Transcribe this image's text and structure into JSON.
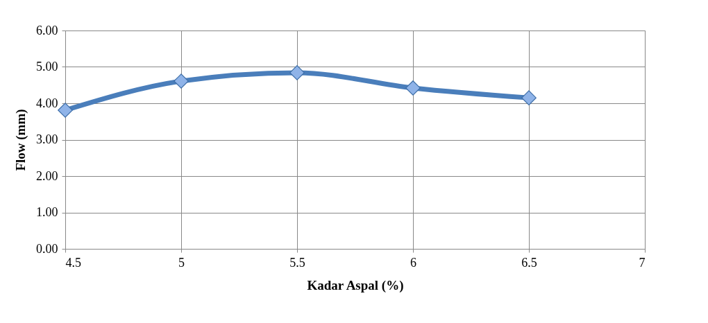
{
  "chart_data": {
    "type": "line",
    "xlabel": "Kadar Aspal (%)",
    "ylabel": "Flow (mm)",
    "x": [
      4.5,
      5,
      5.5,
      6,
      6.5
    ],
    "series": [
      {
        "color": "#4a7ebb",
        "values": [
          3.81,
          4.61,
          4.84,
          4.42,
          4.15
        ]
      }
    ],
    "xlim": [
      4.5,
      7
    ],
    "xticks": [
      4.5,
      5,
      5.5,
      6,
      6.5,
      7
    ],
    "ylim": [
      0,
      6
    ],
    "yticks": [
      {
        "value": 0,
        "label": "0.00"
      },
      {
        "value": 1,
        "label": "1.00"
      },
      {
        "value": 2,
        "label": "2.00"
      },
      {
        "value": 3,
        "label": "3.00"
      },
      {
        "value": 4,
        "label": "4.00"
      },
      {
        "value": 5,
        "label": "5.00"
      },
      {
        "value": 6,
        "label": "6.00"
      }
    ],
    "grid": true,
    "marker": "diamond",
    "line_style": "solid",
    "legend": false
  }
}
